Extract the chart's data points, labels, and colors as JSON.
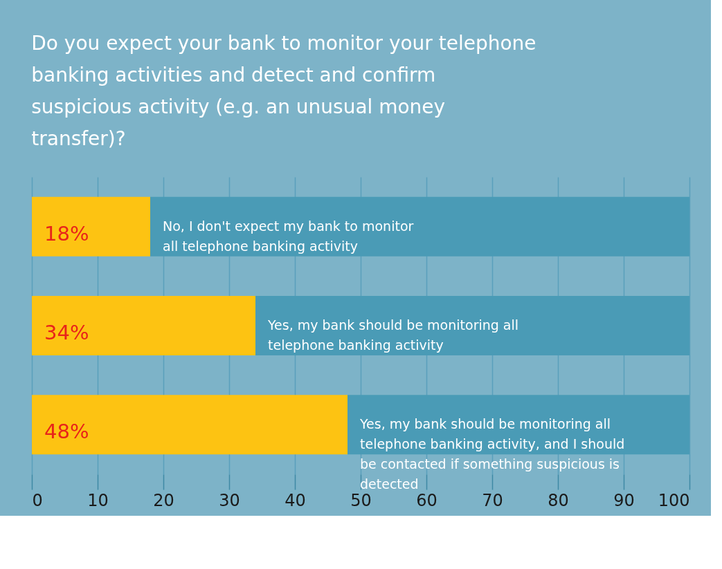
{
  "chart_data": {
    "type": "bar",
    "orientation": "horizontal",
    "stacked": true,
    "title": "Do you expect your bank to monitor your telephone banking activities and detect and confirm suspicious activity (e.g. an unusual money transfer)?",
    "categories": [
      "No, I don't expect my bank to monitor all telephone banking activity",
      "Yes, my bank should be monitoring all telephone banking activity",
      "Yes, my bank should be monitoring all telephone banking activity, and I should be contacted if something suspicious is detected"
    ],
    "series": [
      {
        "color": "#fdc312",
        "values": [
          18,
          34,
          48
        ],
        "value_labels": [
          "18%",
          "34%",
          "48%"
        ]
      },
      {
        "color": "#4a9bb6",
        "values": [
          82,
          66,
          52
        ]
      }
    ],
    "xlim": [
      0,
      100
    ],
    "xticks": [
      0,
      10,
      20,
      30,
      40,
      50,
      60,
      70,
      80,
      90,
      100
    ],
    "grid": "x",
    "tick_labels": "x"
  }
}
